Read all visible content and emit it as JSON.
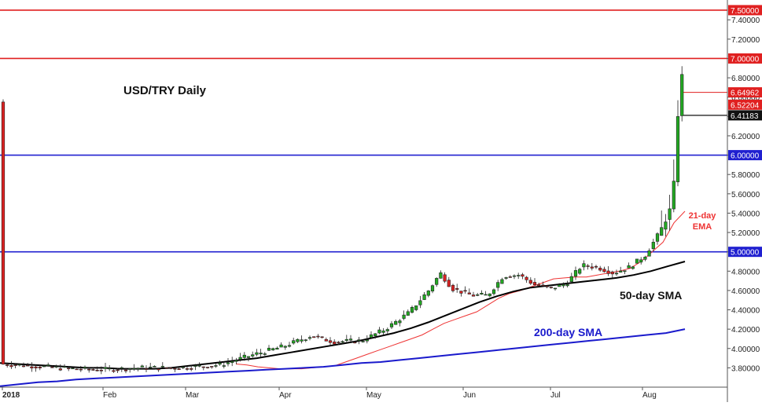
{
  "chart_data": {
    "type": "candlestick",
    "title": "USD/TRY Daily",
    "y_ticks": [
      3.8,
      4.0,
      4.2,
      4.4,
      4.6,
      4.8,
      5.0,
      5.2,
      5.4,
      5.6,
      5.8,
      6.0,
      6.2,
      6.4,
      6.6,
      6.8,
      7.0,
      7.2,
      7.4
    ],
    "ylim": [
      3.6,
      7.54
    ],
    "grid": false,
    "x_month_labels": [
      "2018",
      "Feb",
      "Mar",
      "Apr",
      "May",
      "Jun",
      "Jul",
      "Aug"
    ],
    "horizontal_levels": [
      {
        "value": 7.5,
        "label": "7.50000",
        "color": "#e02020"
      },
      {
        "value": 7.0,
        "label": "7.00000",
        "color": "#e02020"
      },
      {
        "value": 6.0,
        "label": "6.00000",
        "color": "#2020d0"
      },
      {
        "value": 5.0,
        "label": "5.00000",
        "color": "#2020d0"
      }
    ],
    "price_markers": [
      {
        "value": 6.64962,
        "label": "6.64962",
        "bg": "#e02020",
        "fg": "#ffffff"
      },
      {
        "value": 6.52204,
        "label": "6.52204",
        "bg": "#e02020",
        "fg": "#ffffff"
      },
      {
        "value": 6.41183,
        "label": "6.41183",
        "bg": "#111111",
        "fg": "#ffffff"
      }
    ],
    "colors": {
      "up": "#22aa22",
      "down": "#dd2222",
      "ema": "#ee3333",
      "sma50": "#000000",
      "sma200": "#1a1acc"
    },
    "series": [
      {
        "name": "21-day EMA",
        "label": "21-day\nEMA",
        "values": [
          3.84,
          3.83,
          3.81,
          3.8,
          3.79,
          3.79,
          3.79,
          3.8,
          3.81,
          3.82,
          3.86,
          3.9,
          3.94,
          3.98,
          4.02,
          4.06,
          4.1,
          4.14,
          4.2,
          4.26,
          4.3,
          4.34,
          4.38,
          4.45,
          4.52,
          4.57,
          4.6,
          4.64,
          4.68,
          4.72,
          4.73,
          4.74,
          4.74,
          4.76,
          4.78,
          4.8,
          4.83,
          4.9,
          5.0,
          5.1,
          5.3,
          5.42
        ]
      },
      {
        "name": "50-day SMA",
        "label": "50-day SMA",
        "values": [
          3.85,
          3.84,
          3.83,
          3.82,
          3.81,
          3.8,
          3.8,
          3.79,
          3.79,
          3.79,
          3.8,
          3.82,
          3.84,
          3.86,
          3.88,
          3.9,
          3.93,
          3.96,
          3.99,
          4.02,
          4.05,
          4.08,
          4.12,
          4.16,
          4.21,
          4.27,
          4.34,
          4.41,
          4.48,
          4.54,
          4.59,
          4.63,
          4.65,
          4.67,
          4.69,
          4.71,
          4.73,
          4.76,
          4.8,
          4.85,
          4.9
        ]
      },
      {
        "name": "200-day SMA",
        "label": "200-day SMA",
        "values": [
          3.61,
          3.63,
          3.65,
          3.66,
          3.68,
          3.69,
          3.7,
          3.71,
          3.72,
          3.73,
          3.74,
          3.75,
          3.76,
          3.77,
          3.78,
          3.79,
          3.8,
          3.81,
          3.83,
          3.85,
          3.86,
          3.88,
          3.9,
          3.92,
          3.94,
          3.96,
          3.98,
          4.0,
          4.02,
          4.04,
          4.06,
          4.08,
          4.1,
          4.12,
          4.14,
          4.16,
          4.2
        ]
      }
    ]
  }
}
